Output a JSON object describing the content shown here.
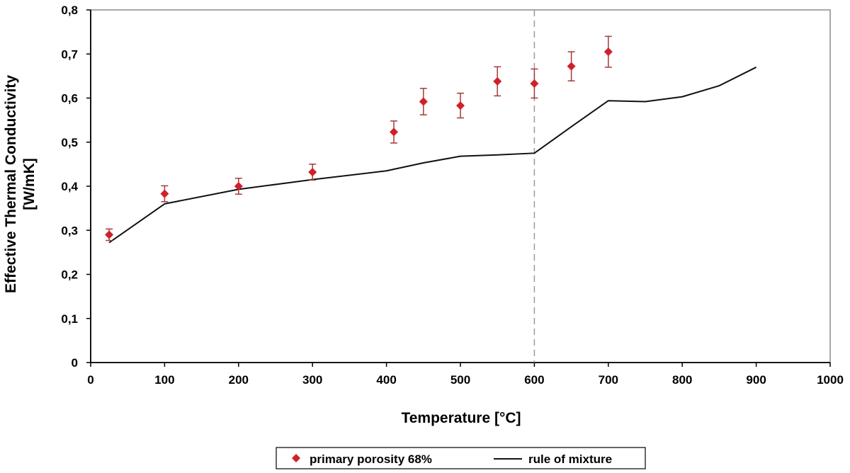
{
  "chart_data": {
    "type": "scatter",
    "xlabel": "Temperature [°C]",
    "ylabel_lines": [
      "Effective Thermal Conductivity",
      "[W/mK]"
    ],
    "xlim": [
      0,
      1000
    ],
    "ylim": [
      0,
      0.8
    ],
    "x_ticks": [
      "0",
      "100",
      "200",
      "300",
      "400",
      "500",
      "600",
      "700",
      "800",
      "900",
      "1000"
    ],
    "y_ticks": [
      "0",
      "0,1",
      "0,2",
      "0,3",
      "0,4",
      "0,5",
      "0,6",
      "0,7",
      "0,8"
    ],
    "grid": false,
    "legend_position": "bottom-center",
    "reference_line_x": 600,
    "series": [
      {
        "name": "primary porosity 68%",
        "kind": "points-with-error-bars",
        "color": "#d0202a",
        "error_color": "#a33a3a",
        "points": [
          {
            "x": 25,
            "y": 0.29,
            "err": 0.013
          },
          {
            "x": 100,
            "y": 0.383,
            "err": 0.018
          },
          {
            "x": 200,
            "y": 0.4,
            "err": 0.018
          },
          {
            "x": 300,
            "y": 0.432,
            "err": 0.018
          },
          {
            "x": 410,
            "y": 0.523,
            "err": 0.025
          },
          {
            "x": 450,
            "y": 0.592,
            "err": 0.03
          },
          {
            "x": 500,
            "y": 0.583,
            "err": 0.028
          },
          {
            "x": 550,
            "y": 0.638,
            "err": 0.033
          },
          {
            "x": 600,
            "y": 0.633,
            "err": 0.033
          },
          {
            "x": 650,
            "y": 0.672,
            "err": 0.033
          },
          {
            "x": 700,
            "y": 0.705,
            "err": 0.035
          }
        ]
      },
      {
        "name": "rule of mixture",
        "kind": "line",
        "color": "#111111",
        "points": [
          {
            "x": 25,
            "y": 0.272
          },
          {
            "x": 100,
            "y": 0.36
          },
          {
            "x": 200,
            "y": 0.393
          },
          {
            "x": 300,
            "y": 0.415
          },
          {
            "x": 400,
            "y": 0.435
          },
          {
            "x": 450,
            "y": 0.453
          },
          {
            "x": 500,
            "y": 0.468
          },
          {
            "x": 550,
            "y": 0.471
          },
          {
            "x": 600,
            "y": 0.475
          },
          {
            "x": 650,
            "y": 0.535
          },
          {
            "x": 700,
            "y": 0.594
          },
          {
            "x": 750,
            "y": 0.592
          },
          {
            "x": 800,
            "y": 0.603
          },
          {
            "x": 850,
            "y": 0.628
          },
          {
            "x": 900,
            "y": 0.67
          }
        ]
      }
    ]
  }
}
